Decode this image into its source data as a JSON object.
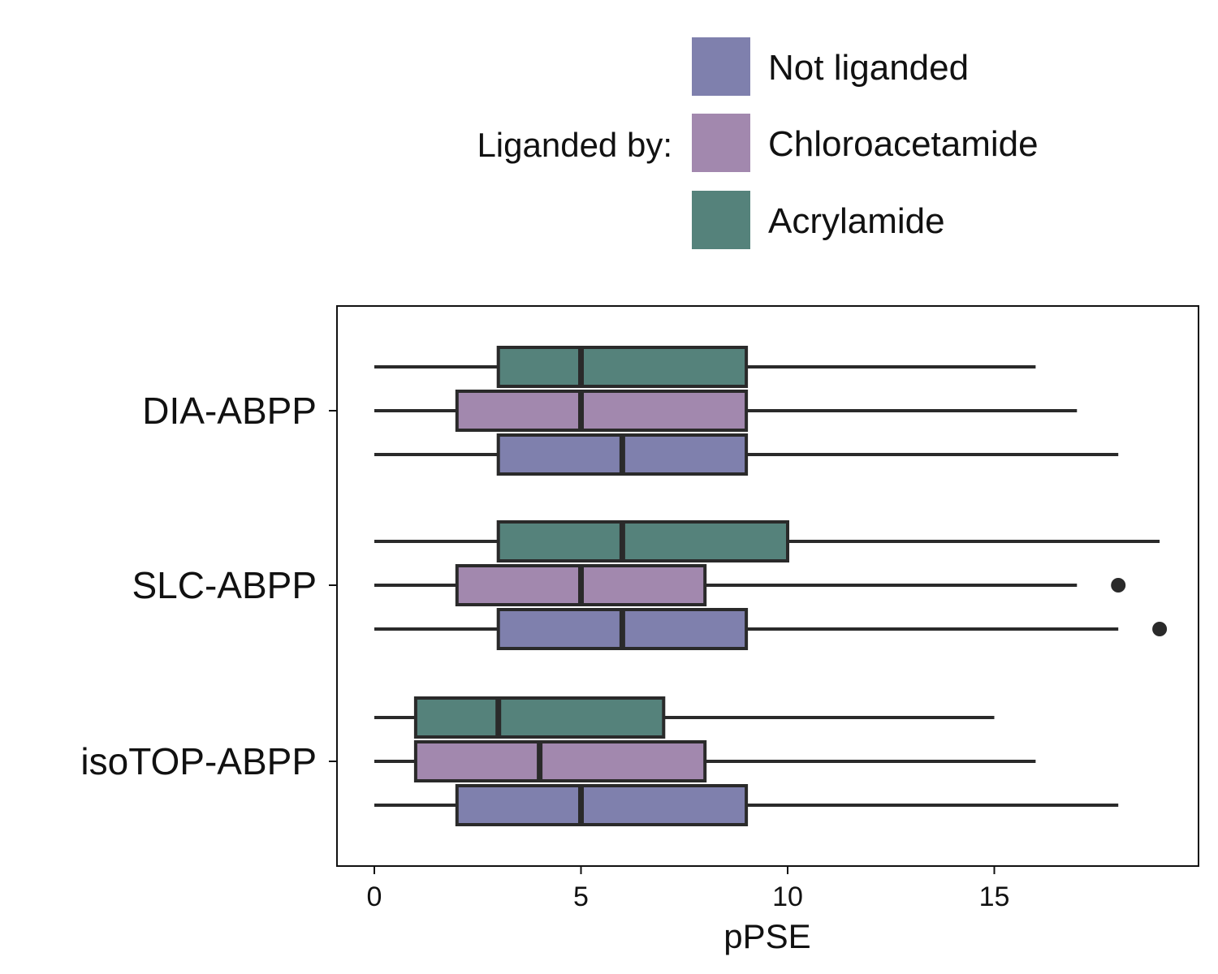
{
  "chart_data": {
    "type": "box",
    "orientation": "horizontal",
    "xlabel": "pPSE",
    "ylabel": "",
    "xlim": [
      -0.9,
      19.9
    ],
    "xticks": [
      0,
      5,
      10,
      15
    ],
    "grid": false,
    "categories": [
      "DIA-ABPP",
      "SLC-ABPP",
      "isoTOP-ABPP"
    ],
    "legend": {
      "title": "Liganded by:",
      "placement": "top"
    },
    "series": [
      {
        "name": "Acrylamide",
        "color": "#55827b",
        "boxes": [
          {
            "category": "DIA-ABPP",
            "whisker_low": 0,
            "q1": 3,
            "median": 5,
            "q3": 9,
            "whisker_high": 16,
            "outliers": []
          },
          {
            "category": "SLC-ABPP",
            "whisker_low": 0,
            "q1": 3,
            "median": 6,
            "q3": 10,
            "whisker_high": 19,
            "outliers": []
          },
          {
            "category": "isoTOP-ABPP",
            "whisker_low": 0,
            "q1": 1,
            "median": 3,
            "q3": 7,
            "whisker_high": 15,
            "outliers": []
          }
        ]
      },
      {
        "name": "Chloroacetamide",
        "color": "#a288ae",
        "boxes": [
          {
            "category": "DIA-ABPP",
            "whisker_low": 0,
            "q1": 2,
            "median": 5,
            "q3": 9,
            "whisker_high": 17,
            "outliers": []
          },
          {
            "category": "SLC-ABPP",
            "whisker_low": 0,
            "q1": 2,
            "median": 5,
            "q3": 8,
            "whisker_high": 17,
            "outliers": [
              18
            ]
          },
          {
            "category": "isoTOP-ABPP",
            "whisker_low": 0,
            "q1": 1,
            "median": 4,
            "q3": 8,
            "whisker_high": 16,
            "outliers": []
          }
        ]
      },
      {
        "name": "Not liganded",
        "color": "#7f80ad",
        "boxes": [
          {
            "category": "DIA-ABPP",
            "whisker_low": 0,
            "q1": 3,
            "median": 6,
            "q3": 9,
            "whisker_high": 18,
            "outliers": []
          },
          {
            "category": "SLC-ABPP",
            "whisker_low": 0,
            "q1": 3,
            "median": 6,
            "q3": 9,
            "whisker_high": 18,
            "outliers": [
              19
            ]
          },
          {
            "category": "isoTOP-ABPP",
            "whisker_low": 0,
            "q1": 2,
            "median": 5,
            "q3": 9,
            "whisker_high": 18,
            "outliers": []
          }
        ]
      }
    ],
    "legend_order": [
      "Not liganded",
      "Chloroacetamide",
      "Acrylamide"
    ]
  }
}
